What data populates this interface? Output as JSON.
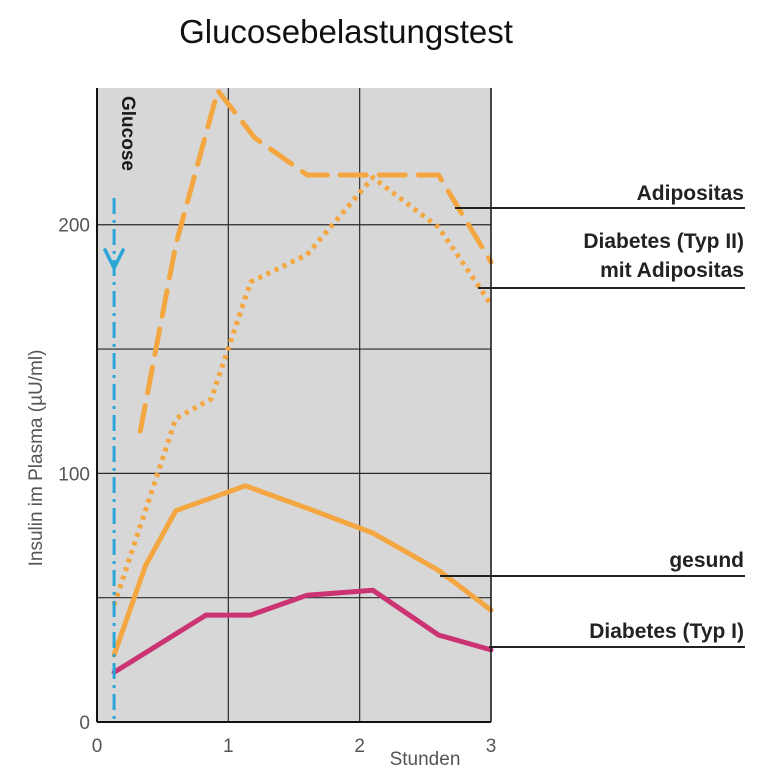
{
  "chart_data": {
    "type": "line",
    "title": "Glucosebelastungstest",
    "xlabel": "Stunden",
    "ylabel": "Insulin im Plasma (µU/ml)",
    "xlim": [
      0,
      3
    ],
    "ylim": [
      0,
      255
    ],
    "x_ticks": [
      "0",
      "1",
      "2",
      "3"
    ],
    "y_ticks": [
      "0",
      "100",
      "200"
    ],
    "grid": true,
    "background_color": "#d7d7d7",
    "marker": {
      "label": "Glucose",
      "x": 0.13,
      "color": "#2aa6d8"
    },
    "series": [
      {
        "name": "Adipositas",
        "color": "#f4a640",
        "style": "dashed",
        "x": [
          0.33,
          0.6,
          0.92,
          1.2,
          1.6,
          2.1,
          2.6,
          3.0
        ],
        "y": [
          117,
          192,
          254,
          235,
          220,
          220,
          220,
          185
        ]
      },
      {
        "name": "Diabetes (Typ II) mit Adipositas",
        "color": "#f4a640",
        "style": "dotted",
        "x": [
          0.13,
          0.6,
          0.87,
          1.17,
          1.6,
          2.1,
          2.6,
          3.0
        ],
        "y": [
          47,
          122,
          130,
          177,
          188,
          219,
          199,
          168
        ]
      },
      {
        "name": "gesund",
        "color": "#f4a640",
        "style": "solid",
        "x": [
          0.13,
          0.37,
          0.6,
          1.13,
          1.6,
          2.1,
          2.6,
          3.0
        ],
        "y": [
          27,
          63,
          85,
          95,
          86,
          76,
          61,
          45
        ]
      },
      {
        "name": "Diabetes (Typ I)",
        "color": "#cc3373",
        "style": "solid",
        "x": [
          0.13,
          0.83,
          1.17,
          1.6,
          2.1,
          2.6,
          3.0
        ],
        "y": [
          20,
          43,
          43,
          51,
          53,
          35,
          29
        ]
      }
    ],
    "legend": [
      {
        "lines": [
          "Adipositas"
        ]
      },
      {
        "lines": [
          "Diabetes (Typ II)",
          "mit Adipositas"
        ]
      },
      {
        "lines": [
          "gesund"
        ]
      },
      {
        "lines": [
          "Diabetes (Typ I)"
        ]
      }
    ]
  }
}
